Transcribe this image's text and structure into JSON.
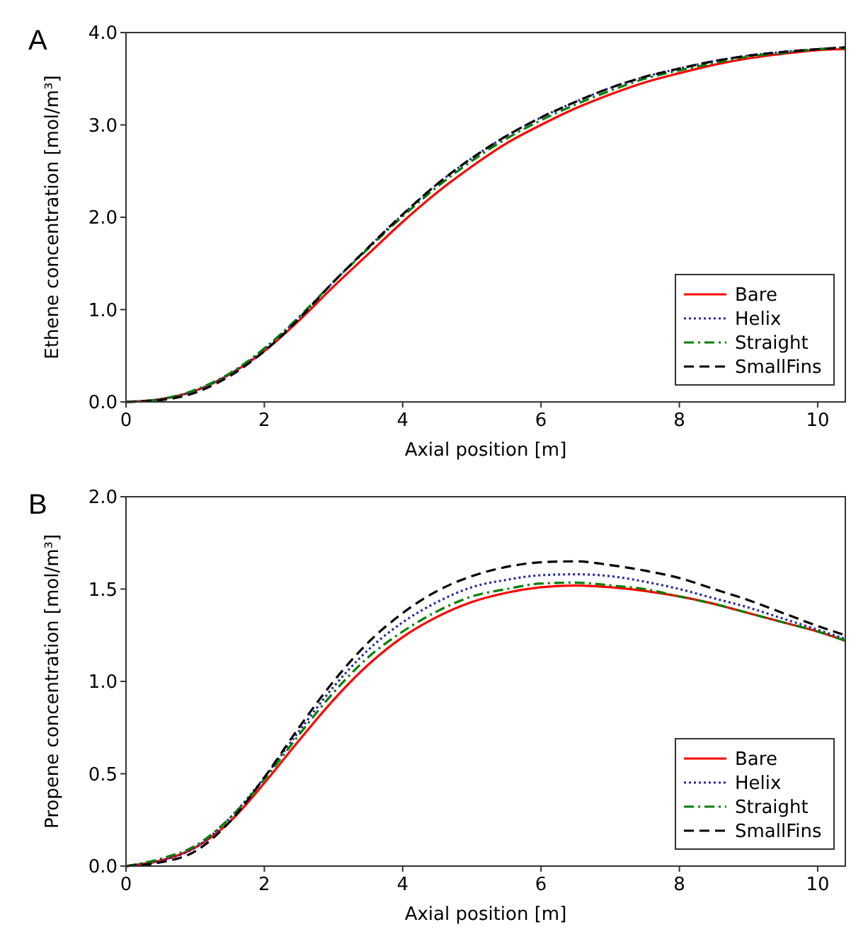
{
  "chart_data": [
    {
      "type": "line",
      "title": "A",
      "xlabel": "Axial position [m]",
      "ylabel": "Ethene concentration [mol/m³]",
      "x": [
        0,
        0.5,
        1,
        1.5,
        2,
        2.5,
        3,
        3.5,
        4,
        4.5,
        5,
        5.5,
        6,
        6.5,
        7,
        7.5,
        8,
        8.5,
        9,
        9.5,
        10,
        10.4
      ],
      "xlim": [
        0,
        10.4
      ],
      "xticks": [
        0,
        2,
        4,
        6,
        8,
        10
      ],
      "ylim": [
        0,
        4
      ],
      "yticks": [
        {
          "value": 0,
          "label": "0.0"
        },
        {
          "value": 1,
          "label": "1.0"
        },
        {
          "value": 2,
          "label": "2.0"
        },
        {
          "value": 3,
          "label": "3.0"
        },
        {
          "value": 4,
          "label": "4.0"
        }
      ],
      "grid": false,
      "legend": "bottom right",
      "series": [
        {
          "name": "Bare",
          "color": "#ff0000",
          "line_style": "solid",
          "values": [
            0,
            0.03,
            0.12,
            0.3,
            0.55,
            0.88,
            1.25,
            1.6,
            1.95,
            2.27,
            2.55,
            2.8,
            3.0,
            3.18,
            3.33,
            3.46,
            3.56,
            3.65,
            3.72,
            3.77,
            3.81,
            3.82
          ]
        },
        {
          "name": "Helix",
          "color": "#2a2a9a",
          "line_style": "dotted",
          "values": [
            0,
            0.03,
            0.12,
            0.3,
            0.57,
            0.91,
            1.3,
            1.67,
            2.03,
            2.36,
            2.64,
            2.88,
            3.08,
            3.25,
            3.4,
            3.52,
            3.61,
            3.69,
            3.75,
            3.79,
            3.82,
            3.84
          ]
        },
        {
          "name": "Straight",
          "color": "#008000",
          "line_style": "dashdot",
          "values": [
            0,
            0.03,
            0.13,
            0.31,
            0.58,
            0.92,
            1.3,
            1.66,
            2.01,
            2.33,
            2.61,
            2.85,
            3.05,
            3.22,
            3.37,
            3.5,
            3.59,
            3.67,
            3.74,
            3.78,
            3.82,
            3.83
          ]
        },
        {
          "name": "SmallFins",
          "color": "#000000",
          "line_style": "dashed",
          "values": [
            0,
            0.02,
            0.1,
            0.28,
            0.55,
            0.9,
            1.3,
            1.67,
            2.03,
            2.36,
            2.64,
            2.88,
            3.08,
            3.25,
            3.4,
            3.52,
            3.61,
            3.69,
            3.75,
            3.79,
            3.82,
            3.84
          ]
        }
      ]
    },
    {
      "type": "line",
      "title": "B",
      "xlabel": "Axial position [m]",
      "ylabel": "Propene concentration [mol/m³]",
      "x": [
        0,
        0.5,
        1,
        1.5,
        2,
        2.5,
        3,
        3.5,
        4,
        4.5,
        5,
        5.5,
        6,
        6.5,
        7,
        7.5,
        8,
        8.5,
        9,
        9.5,
        10,
        10.4
      ],
      "xlim": [
        0,
        10.4
      ],
      "xticks": [
        0,
        2,
        4,
        6,
        8,
        10
      ],
      "ylim": [
        0,
        2
      ],
      "yticks": [
        {
          "value": 0,
          "label": "0.0"
        },
        {
          "value": 0.5,
          "label": "0.5"
        },
        {
          "value": 1,
          "label": "1.0"
        },
        {
          "value": 1.5,
          "label": "1.5"
        },
        {
          "value": 2,
          "label": "2.0"
        }
      ],
      "grid": false,
      "legend": "bottom right",
      "series": [
        {
          "name": "Bare",
          "color": "#ff0000",
          "line_style": "solid",
          "values": [
            0,
            0.03,
            0.1,
            0.24,
            0.45,
            0.68,
            0.9,
            1.09,
            1.24,
            1.35,
            1.43,
            1.48,
            1.51,
            1.52,
            1.51,
            1.49,
            1.46,
            1.42,
            1.37,
            1.32,
            1.27,
            1.22
          ]
        },
        {
          "name": "Helix",
          "color": "#2a2a9a",
          "line_style": "dotted",
          "values": [
            0,
            0.03,
            0.1,
            0.26,
            0.48,
            0.73,
            0.97,
            1.17,
            1.32,
            1.43,
            1.51,
            1.55,
            1.575,
            1.58,
            1.57,
            1.54,
            1.5,
            1.45,
            1.4,
            1.34,
            1.28,
            1.23
          ]
        },
        {
          "name": "Straight",
          "color": "#008000",
          "line_style": "dashdot",
          "values": [
            0,
            0.04,
            0.11,
            0.26,
            0.47,
            0.71,
            0.94,
            1.13,
            1.27,
            1.38,
            1.46,
            1.5,
            1.53,
            1.535,
            1.52,
            1.5,
            1.46,
            1.42,
            1.37,
            1.32,
            1.27,
            1.22
          ]
        },
        {
          "name": "SmallFins",
          "color": "#000000",
          "line_style": "dashed",
          "values": [
            0,
            0.02,
            0.08,
            0.24,
            0.48,
            0.75,
            1.0,
            1.21,
            1.37,
            1.49,
            1.57,
            1.62,
            1.645,
            1.65,
            1.63,
            1.6,
            1.56,
            1.5,
            1.44,
            1.37,
            1.3,
            1.25
          ]
        }
      ]
    }
  ]
}
